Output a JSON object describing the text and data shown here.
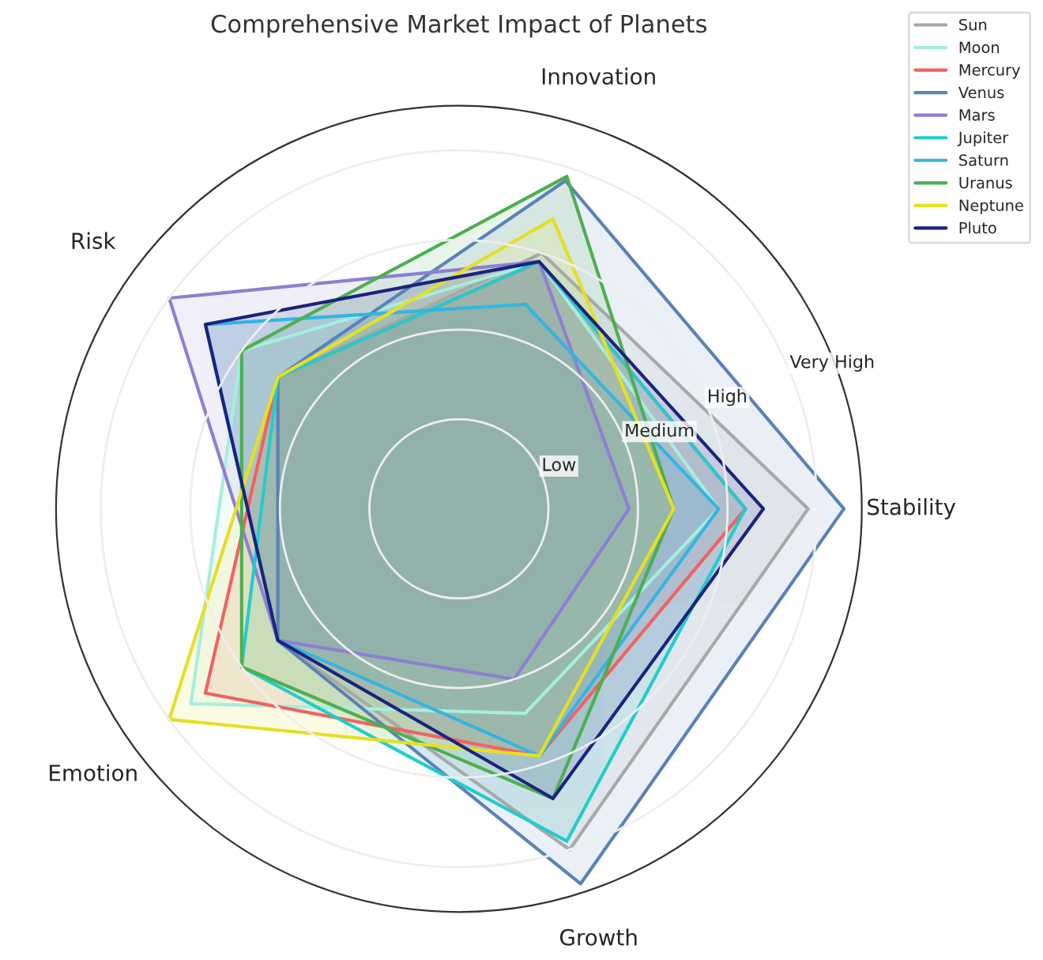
{
  "chart_data": {
    "type": "radar",
    "title": "Comprehensive Market Impact of Planets",
    "categories": [
      "Innovation",
      "Stability",
      "Growth",
      "Emotion",
      "Risk"
    ],
    "ylim": [
      0,
      4.5
    ],
    "yticks": [
      {
        "value": 1,
        "label": "Low"
      },
      {
        "value": 2,
        "label": "Medium"
      },
      {
        "value": 3,
        "label": "High"
      },
      {
        "value": 4,
        "label": "Very High"
      }
    ],
    "grid": true,
    "legend": "top right",
    "series": [
      {
        "name": "Sun",
        "color": "#a8a8a8",
        "values": [
          3.0,
          3.9,
          4.0,
          2.5,
          2.5
        ]
      },
      {
        "name": "Moon",
        "color": "#a6eedd",
        "values": [
          2.9,
          2.9,
          2.4,
          3.7,
          3.0
        ]
      },
      {
        "name": "Mercury",
        "color": "#f06262",
        "values": [
          2.9,
          3.2,
          2.9,
          3.5,
          2.5
        ]
      },
      {
        "name": "Venus",
        "color": "#5a82b8",
        "values": [
          3.85,
          4.3,
          4.4,
          2.5,
          2.5
        ]
      },
      {
        "name": "Mars",
        "color": "#8e7fd2",
        "values": [
          2.9,
          1.9,
          2.0,
          2.5,
          4.0
        ]
      },
      {
        "name": "Jupiter",
        "color": "#22cccc",
        "values": [
          2.9,
          3.2,
          3.9,
          3.0,
          2.5
        ]
      },
      {
        "name": "Saturn",
        "color": "#33b5e0",
        "values": [
          2.4,
          2.9,
          2.9,
          2.5,
          3.5
        ]
      },
      {
        "name": "Uranus",
        "color": "#4caf50",
        "values": [
          3.9,
          2.4,
          3.4,
          3.0,
          3.0
        ]
      },
      {
        "name": "Neptune",
        "color": "#e6df22",
        "values": [
          3.4,
          2.4,
          2.9,
          4.0,
          2.5
        ]
      },
      {
        "name": "Pluto",
        "color": "#1a237e",
        "values": [
          2.9,
          3.4,
          3.4,
          2.5,
          3.5
        ]
      }
    ]
  }
}
